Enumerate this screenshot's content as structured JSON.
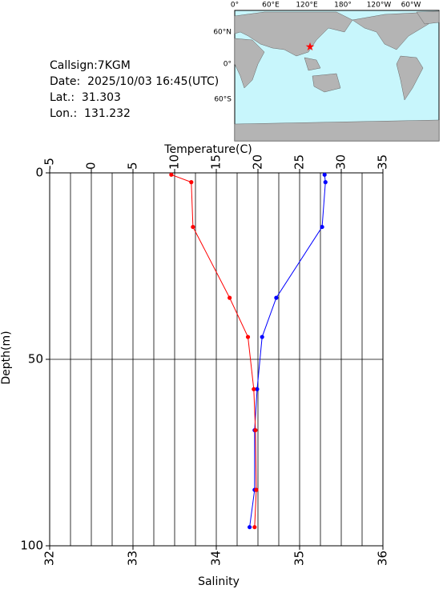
{
  "header": {
    "lines": [
      "Callsign:7KGM",
      "Date:  2025/10/03 16:45(UTC)",
      "Lat.:  31.303",
      "Lon.:  131.232"
    ]
  },
  "map": {
    "lon_labels": [
      "0°",
      "60°E",
      "120°E",
      "180°",
      "120°W",
      "60°W"
    ],
    "lat_labels": [
      "60°N",
      "0°",
      "60°S"
    ]
  },
  "chart_data": {
    "type": "profile",
    "xlabel_top": "Temperature(C)",
    "xlabel": "Salinity",
    "ylabel": "Depth(m)",
    "y": [
      0.5,
      2.5,
      14.5,
      33.5,
      44,
      58,
      69,
      85,
      95
    ],
    "series": [
      {
        "color": "#0000ff",
        "axis": "x2",
        "x": [
          28.0,
          28.1,
          27.7,
          22.2,
          20.5,
          19.9,
          19.6,
          19.6,
          19.0
        ]
      },
      {
        "color": "#ff0000",
        "axis": "x",
        "x": [
          33.46,
          33.7,
          33.72,
          34.16,
          34.38,
          34.45,
          34.47,
          34.48,
          34.46
        ]
      }
    ],
    "xlim": [
      32,
      36
    ],
    "xticks": [
      32,
      33,
      34,
      35,
      36
    ],
    "x2lim": [
      -5,
      35
    ],
    "x2ticks": [
      -5,
      0,
      5,
      10,
      15,
      20,
      25,
      30,
      35
    ],
    "x2minorticks": [
      -2.5,
      2.5,
      7.5,
      12.5,
      17.5,
      22.5,
      27.5,
      32.5
    ],
    "ylim": [
      0,
      100
    ],
    "yticks": [
      0,
      50,
      100
    ],
    "y_inverted": true,
    "grid": true
  }
}
